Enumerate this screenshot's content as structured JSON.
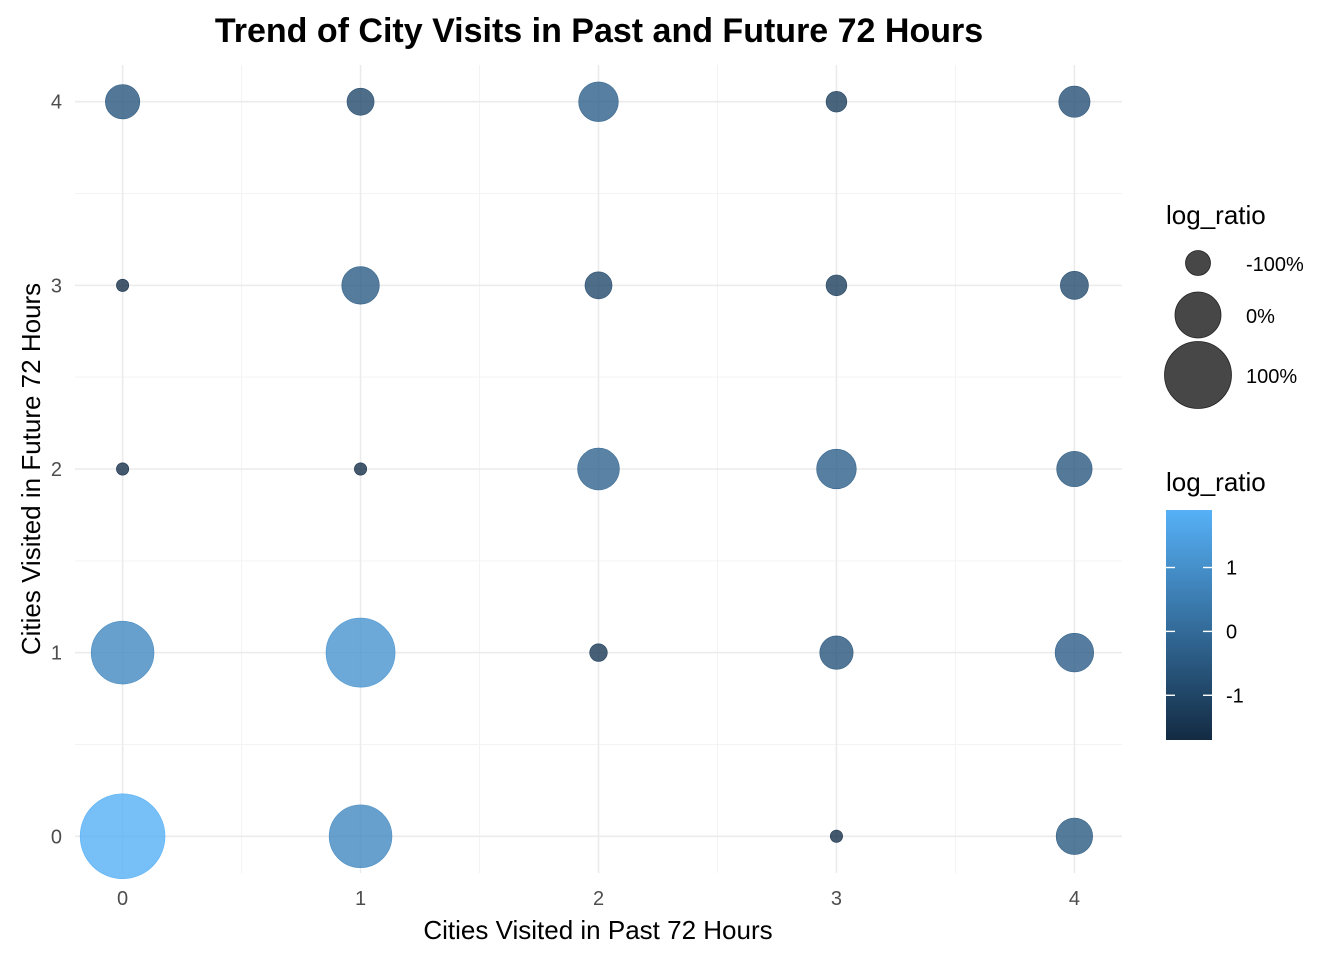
{
  "chart_data": {
    "type": "scatter",
    "title": "Trend of City Visits in Past and Future 72 Hours",
    "xlabel": "Cities Visited in Past 72 Hours",
    "ylabel": "Cities Visited in Future 72 Hours",
    "xlim": [
      -0.2,
      4.2
    ],
    "ylim": [
      -0.2,
      4.2
    ],
    "x_ticks": [
      0,
      1,
      2,
      3,
      4
    ],
    "y_ticks": [
      0,
      1,
      2,
      3,
      4
    ],
    "grid": true,
    "points": [
      {
        "x": 0,
        "y": 4,
        "log_ratio": -0.55
      },
      {
        "x": 1,
        "y": 4,
        "log_ratio": -0.9
      },
      {
        "x": 2,
        "y": 4,
        "log_ratio": -0.3
      },
      {
        "x": 3,
        "y": 4,
        "log_ratio": -1.2
      },
      {
        "x": 4,
        "y": 4,
        "log_ratio": -0.7
      },
      {
        "x": 0,
        "y": 3,
        "log_ratio": -1.6
      },
      {
        "x": 1,
        "y": 3,
        "log_ratio": -0.4
      },
      {
        "x": 2,
        "y": 3,
        "log_ratio": -0.9
      },
      {
        "x": 3,
        "y": 3,
        "log_ratio": -1.2
      },
      {
        "x": 4,
        "y": 3,
        "log_ratio": -0.85
      },
      {
        "x": 0,
        "y": 2,
        "log_ratio": -1.6
      },
      {
        "x": 1,
        "y": 2,
        "log_ratio": -1.6
      },
      {
        "x": 2,
        "y": 2,
        "log_ratio": -0.2
      },
      {
        "x": 3,
        "y": 2,
        "log_ratio": -0.3
      },
      {
        "x": 4,
        "y": 2,
        "log_ratio": -0.5
      },
      {
        "x": 0,
        "y": 1,
        "log_ratio": 0.8
      },
      {
        "x": 1,
        "y": 1,
        "log_ratio": 1.1
      },
      {
        "x": 2,
        "y": 1,
        "log_ratio": -1.35
      },
      {
        "x": 3,
        "y": 1,
        "log_ratio": -0.6
      },
      {
        "x": 4,
        "y": 1,
        "log_ratio": -0.35
      },
      {
        "x": 0,
        "y": 0,
        "log_ratio": 1.85
      },
      {
        "x": 1,
        "y": 0,
        "log_ratio": 0.8
      },
      {
        "x": 3,
        "y": 0,
        "log_ratio": -1.6
      },
      {
        "x": 4,
        "y": 0,
        "log_ratio": -0.45
      }
    ],
    "size_legend": {
      "title": "log_ratio",
      "entries": [
        {
          "label": "-100%",
          "value": -1
        },
        {
          "label": "0%",
          "value": 0
        },
        {
          "label": "100%",
          "value": 1
        }
      ]
    },
    "color_legend": {
      "title": "log_ratio",
      "low_color": "#132b43",
      "high_color": "#56b1f7",
      "range": [
        -1.7,
        1.9
      ],
      "ticks": [
        {
          "label": "1",
          "value": 1
        },
        {
          "label": "0",
          "value": 0
        },
        {
          "label": "-1",
          "value": -1
        }
      ]
    },
    "point_opacity": 0.8,
    "panel_background": "#ffffff",
    "grid_color": "#ebebeb"
  }
}
